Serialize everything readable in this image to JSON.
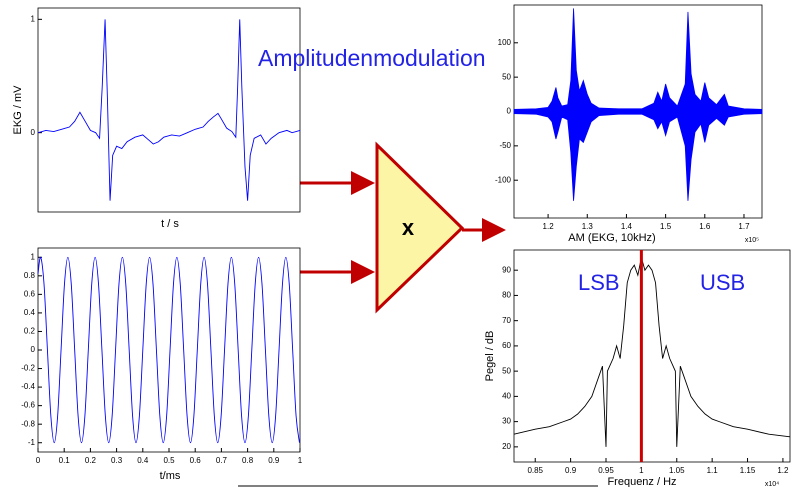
{
  "heading": "Amplitudenmodulation",
  "multiplier_label": "x",
  "chart_data": [
    {
      "type": "line",
      "ylabel": "EKG / mV",
      "xlabel": "t / s",
      "color": "#0000ff",
      "xlim": [
        0,
        100
      ],
      "ylim": [
        -0.7,
        1.1
      ],
      "yticks": [
        0,
        1
      ],
      "x": [
        0,
        3,
        6,
        9,
        12,
        14,
        16,
        18,
        20,
        22,
        23.5,
        24.5,
        25.6,
        26.5,
        27.5,
        28.5,
        30,
        32,
        34,
        37,
        40,
        42,
        44,
        46,
        48,
        51,
        54,
        57,
        60,
        63,
        65,
        67,
        68.7,
        70,
        72,
        74,
        75.5,
        76.2,
        77,
        77.8,
        79,
        80,
        81,
        82.5,
        85,
        87,
        89,
        92,
        95,
        97,
        100
      ],
      "values": [
        0.0,
        0.02,
        0.01,
        0.03,
        0.05,
        0.1,
        0.18,
        0.1,
        0.02,
        0.0,
        -0.05,
        0.4,
        1.0,
        0.3,
        -0.6,
        -0.2,
        -0.12,
        -0.14,
        -0.08,
        -0.04,
        -0.02,
        -0.06,
        -0.1,
        -0.08,
        -0.04,
        -0.02,
        -0.03,
        0.0,
        0.03,
        0.05,
        0.1,
        0.14,
        0.17,
        0.12,
        0.04,
        0.01,
        -0.04,
        0.4,
        1.0,
        0.4,
        -0.3,
        -0.6,
        -0.2,
        -0.05,
        -0.02,
        -0.1,
        -0.05,
        0.0,
        0.02,
        0.0,
        0.02
      ]
    },
    {
      "type": "line",
      "smooth": true,
      "xlabel": "t/ms",
      "color": "#0000ff",
      "xlim": [
        0,
        1
      ],
      "ylim": [
        -1.1,
        1.1
      ],
      "xticks": [
        0,
        0.1,
        0.2,
        0.3,
        0.4,
        0.5,
        0.6,
        0.7,
        0.8,
        0.9,
        1
      ],
      "yticks": [
        -1,
        -0.8,
        -0.6,
        -0.4,
        -0.2,
        0,
        0.2,
        0.4,
        0.6,
        0.8,
        1
      ],
      "x": [
        0,
        0.01,
        0.023,
        0.036,
        0.049,
        0.062,
        0.075,
        0.088,
        0.101,
        0.114,
        0.127,
        0.14,
        0.153,
        0.166,
        0.179,
        0.192,
        0.205,
        0.218,
        0.231,
        0.244,
        0.257,
        0.27,
        0.283,
        0.296,
        0.309,
        0.322,
        0.335,
        0.348,
        0.361,
        0.374,
        0.387,
        0.4,
        0.413,
        0.426,
        0.439,
        0.452,
        0.465,
        0.478,
        0.491,
        0.504,
        0.517,
        0.53,
        0.543,
        0.556,
        0.569,
        0.582,
        0.595,
        0.608,
        0.621,
        0.634,
        0.647,
        0.66,
        0.673,
        0.686,
        0.699,
        0.712,
        0.725,
        0.738,
        0.751,
        0.764,
        0.777,
        0.79,
        0.803,
        0.816,
        0.829,
        0.842,
        0.855,
        0.868,
        0.881,
        0.894,
        0.907,
        0.92,
        0.933,
        0.946,
        0.959,
        0.972,
        0.985,
        0.998
      ],
      "values": [
        0.82,
        1,
        0.71,
        0,
        -0.71,
        -1,
        -0.71,
        0,
        0.71,
        1,
        0.71,
        0,
        -0.71,
        -1,
        -0.71,
        0,
        0.71,
        1,
        0.71,
        0,
        -0.71,
        -1,
        -0.71,
        0,
        0.71,
        1,
        0.71,
        0,
        -0.71,
        -1,
        -0.71,
        0,
        0.71,
        1,
        0.71,
        0,
        -0.71,
        -1,
        -0.71,
        0,
        0.71,
        1,
        0.71,
        0,
        -0.71,
        -1,
        -0.71,
        0,
        0.71,
        1,
        0.71,
        0,
        -0.71,
        -1,
        -0.71,
        0,
        0.71,
        1,
        0.71,
        0,
        -0.71,
        -1,
        -0.71,
        0,
        0.71,
        1,
        0.71,
        0,
        -0.71,
        -1,
        -0.71,
        0,
        0.71,
        1,
        0.71,
        0,
        -0.71,
        -1
      ]
    },
    {
      "type": "envelope",
      "xlabel": "AM (EKG, 10kHz)",
      "x_exponent_label": "x10⁵",
      "color": "#0000ff",
      "xlim": [
        1.113,
        1.746
      ],
      "ylim": [
        -155,
        155
      ],
      "xticks": [
        1.2,
        1.3,
        1.4,
        1.5,
        1.6,
        1.7
      ],
      "yticks": [
        -100,
        -50,
        0,
        50,
        100
      ],
      "x": [
        1.113,
        1.17,
        1.2,
        1.21,
        1.22,
        1.225,
        1.235,
        1.25,
        1.258,
        1.265,
        1.272,
        1.28,
        1.29,
        1.3,
        1.31,
        1.33,
        1.38,
        1.44,
        1.47,
        1.48,
        1.49,
        1.5,
        1.51,
        1.53,
        1.55,
        1.557,
        1.565,
        1.575,
        1.59,
        1.6,
        1.61,
        1.63,
        1.65,
        1.66,
        1.7,
        1.746
      ],
      "upper": [
        3,
        4,
        6,
        15,
        35,
        20,
        8,
        10,
        45,
        150,
        60,
        30,
        45,
        25,
        12,
        5,
        4,
        4,
        12,
        28,
        15,
        40,
        20,
        8,
        40,
        145,
        55,
        25,
        15,
        42,
        20,
        10,
        25,
        8,
        4,
        3
      ],
      "lower": [
        -3,
        -4,
        -8,
        -15,
        -40,
        -30,
        -8,
        -12,
        -60,
        -130,
        -80,
        -40,
        -45,
        -30,
        -15,
        -6,
        -4,
        -4,
        -12,
        -25,
        -15,
        -35,
        -15,
        -8,
        -50,
        -130,
        -70,
        -30,
        -18,
        -45,
        -20,
        -10,
        -20,
        -8,
        -4,
        -3
      ]
    },
    {
      "type": "line",
      "ylabel": "Pegel / dB",
      "xlabel": "Frequenz / Hz",
      "x_exponent_label": "x10⁴",
      "color": "#000000",
      "xlim": [
        0.82,
        1.21
      ],
      "ylim": [
        14,
        98
      ],
      "xticks": [
        0.85,
        0.9,
        0.95,
        1,
        1.05,
        1.1,
        1.15,
        1.2
      ],
      "yticks": [
        20,
        30,
        40,
        50,
        60,
        70,
        80,
        90
      ],
      "marker_x": 1,
      "marker_color": "#cc0000",
      "annotations": [
        "LSB",
        "USB"
      ],
      "x": [
        0.82,
        0.85,
        0.87,
        0.89,
        0.9,
        0.91,
        0.92,
        0.93,
        0.94,
        0.945,
        0.95,
        0.952,
        0.96,
        0.965,
        0.97,
        0.975,
        0.98,
        0.985,
        0.99,
        0.995,
        1.0,
        1.005,
        1.01,
        1.015,
        1.02,
        1.025,
        1.03,
        1.035,
        1.04,
        1.048,
        1.05,
        1.055,
        1.06,
        1.07,
        1.08,
        1.09,
        1.1,
        1.11,
        1.13,
        1.15,
        1.18,
        1.21
      ],
      "values": [
        25,
        27,
        28,
        30,
        31,
        33,
        36,
        40,
        48,
        52,
        20,
        50,
        55,
        60,
        55,
        68,
        85,
        90,
        92,
        88,
        95,
        90,
        92,
        90,
        85,
        68,
        55,
        60,
        55,
        50,
        20,
        52,
        48,
        40,
        36,
        33,
        31,
        30,
        28,
        27,
        25,
        24
      ]
    }
  ]
}
